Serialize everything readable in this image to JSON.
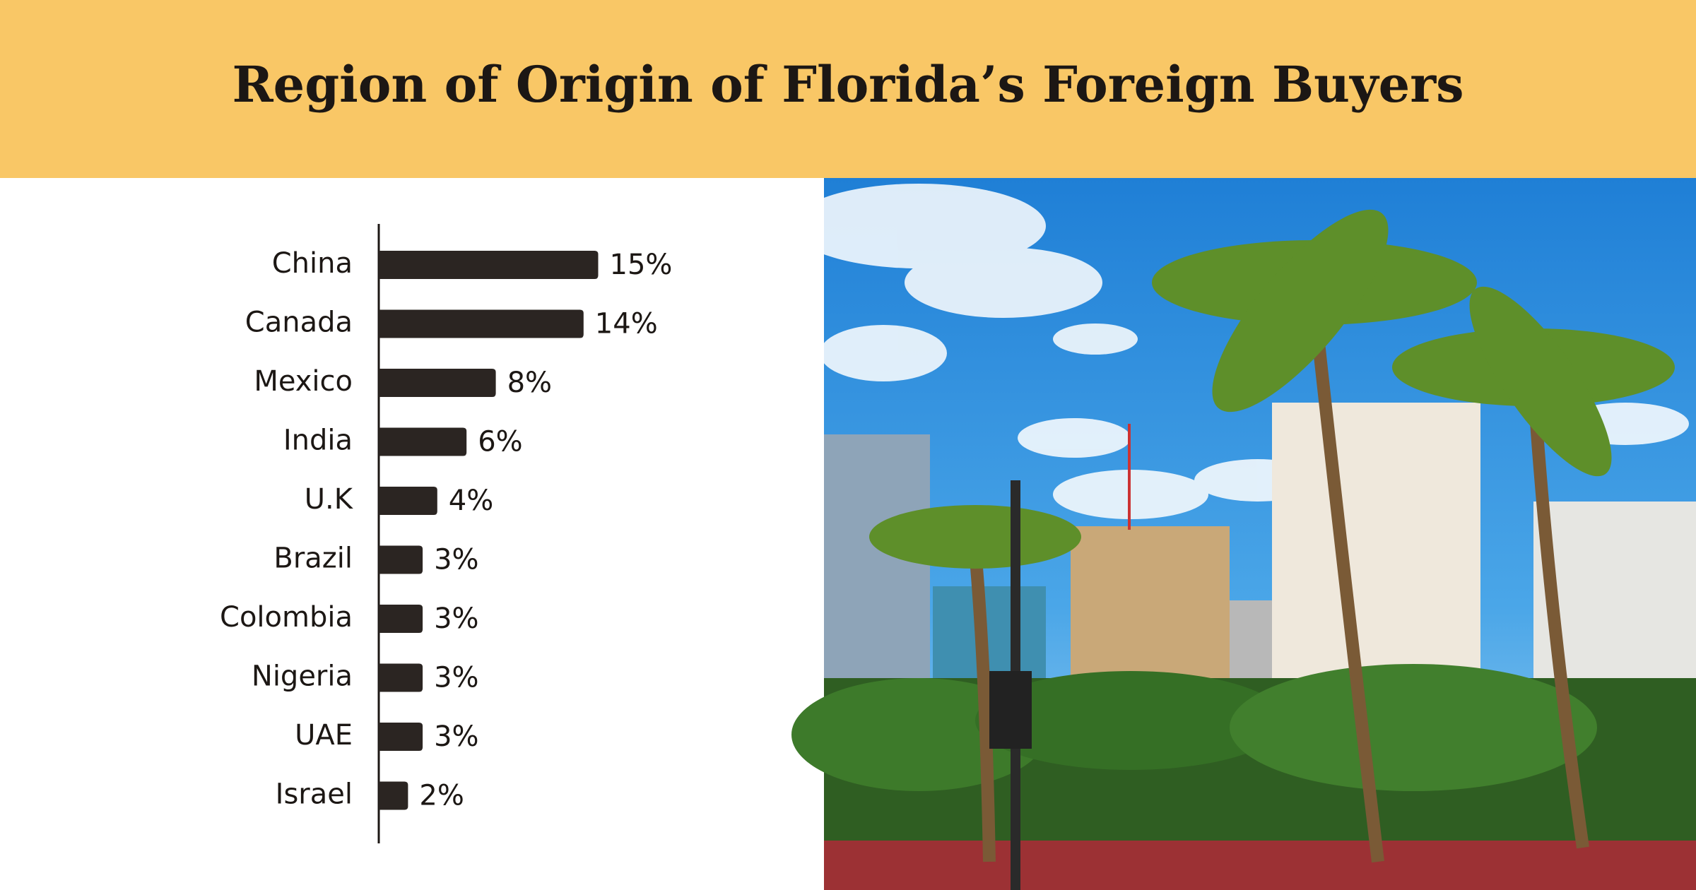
{
  "chart_data": {
    "type": "bar",
    "orientation": "horizontal",
    "title": "Region of Origin of Florida’s Foreign Buyers",
    "categories": [
      "China",
      "Canada",
      "Mexico",
      "India",
      "U.K",
      "Brazil",
      "Colombia",
      "Nigeria",
      "UAE",
      "Israel"
    ],
    "values": [
      15,
      14,
      8,
      6,
      4,
      3,
      3,
      3,
      3,
      2
    ],
    "value_labels": [
      "15%",
      "14%",
      "8%",
      "6%",
      "4%",
      "3%",
      "3%",
      "3%",
      "3%",
      "2%"
    ],
    "color": "#2b2522"
  }
}
